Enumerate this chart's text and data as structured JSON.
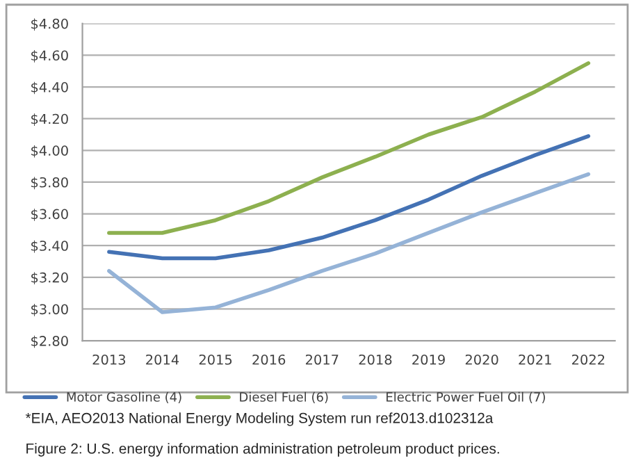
{
  "chart_data": {
    "type": "line",
    "categories": [
      "2013",
      "2014",
      "2015",
      "2016",
      "2017",
      "2018",
      "2019",
      "2020",
      "2021",
      "2022"
    ],
    "series": [
      {
        "name": "Motor Gasoline (4)",
        "color": "#4472b4",
        "values": [
          3.36,
          3.32,
          3.32,
          3.37,
          3.45,
          3.56,
          3.69,
          3.84,
          3.97,
          4.09
        ]
      },
      {
        "name": "Diesel Fuel (6)",
        "color": "#8db04f",
        "values": [
          3.48,
          3.48,
          3.56,
          3.68,
          3.83,
          3.96,
          4.1,
          4.21,
          4.37,
          4.55
        ]
      },
      {
        "name": "Electric Power Fuel Oil (7)",
        "color": "#95b3d7",
        "values": [
          3.24,
          2.98,
          3.01,
          3.12,
          3.24,
          3.35,
          3.48,
          3.61,
          3.73,
          3.85
        ]
      }
    ],
    "ylim": [
      2.8,
      4.8
    ],
    "yticks": [
      {
        "value": 2.8,
        "label": "$2.80"
      },
      {
        "value": 3.0,
        "label": "$3.00"
      },
      {
        "value": 3.2,
        "label": "$3.20"
      },
      {
        "value": 3.4,
        "label": "$3.40"
      },
      {
        "value": 3.6,
        "label": "$3.60"
      },
      {
        "value": 3.8,
        "label": "$3.80"
      },
      {
        "value": 4.0,
        "label": "$4.00"
      },
      {
        "value": 4.2,
        "label": "$4.20"
      },
      {
        "value": 4.4,
        "label": "$4.40"
      },
      {
        "value": 4.6,
        "label": "$4.60"
      },
      {
        "value": 4.8,
        "label": "$4.80"
      }
    ],
    "grid": "y",
    "legend": "bottom",
    "marker": "none",
    "line_style": "solid",
    "annotations": [
      "*EIA, AEO2013 National Energy Modeling System run ref2013.d102312a",
      "Figure 2: U.S. energy information administration petroleum product prices."
    ]
  }
}
